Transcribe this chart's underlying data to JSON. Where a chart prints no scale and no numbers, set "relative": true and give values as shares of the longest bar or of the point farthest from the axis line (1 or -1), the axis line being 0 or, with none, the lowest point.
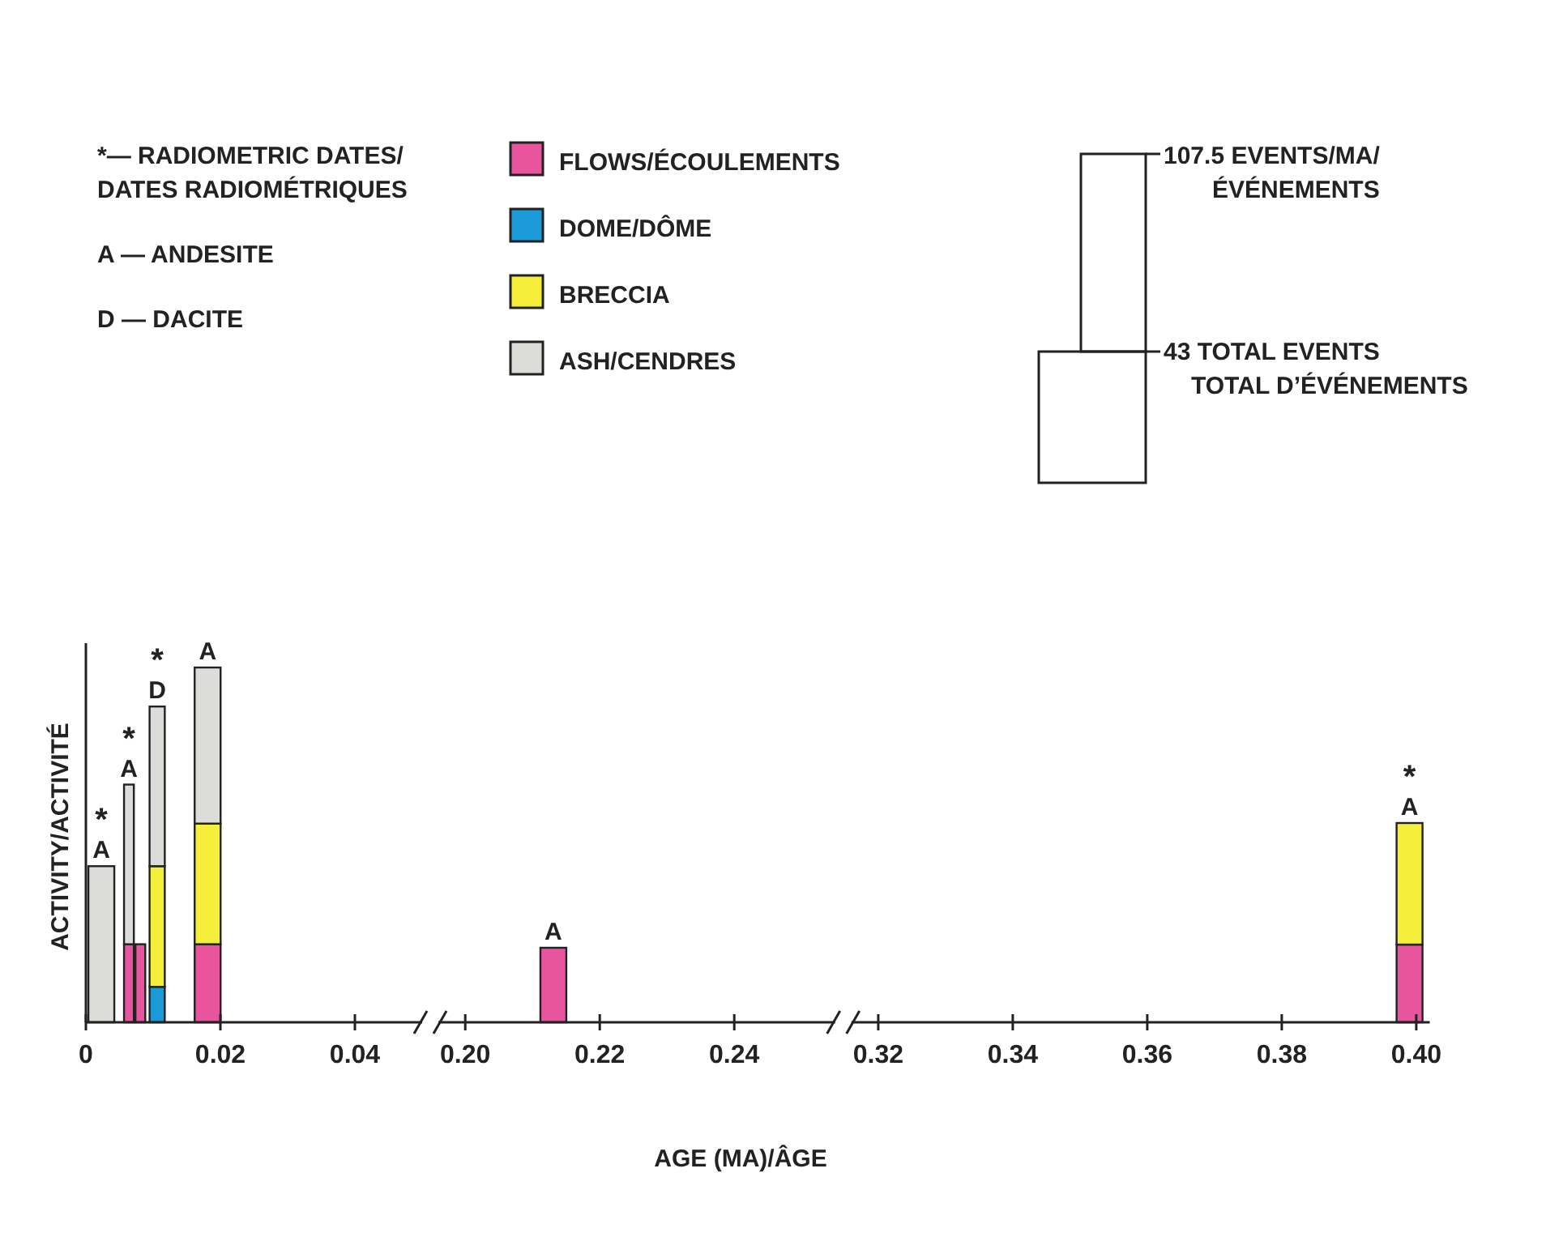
{
  "chart_data": [
    {
      "type": "bar",
      "stacked": true,
      "relative": true,
      "ylabel": "ACTIVITY/ACTIVITÉ",
      "x": [
        0.0023,
        0.0064,
        0.0081,
        0.0106,
        0.0181
      ],
      "xlim": [
        0,
        0.05
      ],
      "xticks": [
        0,
        0.02,
        0.04
      ],
      "series": [
        {
          "name": "FLOWS/ÉCOULEMENTS",
          "color": "#e8559e",
          "values": [
            null,
            0.22,
            0.22,
            null,
            0.22
          ]
        },
        {
          "name": "DOME/DÔME",
          "color": "#1a9ad6",
          "values": [
            null,
            null,
            null,
            0.1,
            null
          ]
        },
        {
          "name": "BRECCIA",
          "color": "#f5ee3a",
          "values": [
            null,
            null,
            null,
            0.34,
            0.34
          ]
        },
        {
          "name": "ASH/CENDRES",
          "color": "#dcdcd8",
          "values": [
            0.44,
            0.45,
            null,
            0.45,
            0.44
          ]
        }
      ],
      "legend": "top",
      "annotations": [
        "*— RADIOMETRIC DATES/\nDATES RADIOMÉTRIQUES",
        "A — ANDESITE",
        "D — DACITE",
        "107.5 EVENTS/MA/\nÉVÉNEMENTS",
        "43 TOTAL EVENTS\nTOTAL D’ÉVÉNEMENTS",
        {
          "text": "*\nA",
          "x": 0.0023,
          "y": 0.44
        },
        {
          "text": "*\nA",
          "x": 0.0064,
          "y": 0.67
        },
        {
          "text": "*\nD",
          "x": 0.0106,
          "y": 0.89
        },
        {
          "text": "A",
          "x": 0.0181,
          "y": 1.0
        }
      ]
    },
    {
      "type": "bar",
      "stacked": true,
      "relative": true,
      "xlabel": "AGE (MA)/ÂGE",
      "x": [
        0.2131
      ],
      "xlim": [
        0.196,
        0.255
      ],
      "xticks": [
        {
          "value": 0.2,
          "label": "0.20"
        },
        0.22,
        0.24
      ],
      "series": [
        {
          "color": "#e8559e",
          "values": [
            1
          ]
        }
      ],
      "annotations": [
        {
          "text": "A",
          "x": 0.2131,
          "y": 1
        }
      ]
    },
    {
      "type": "bar",
      "stacked": true,
      "relative": true,
      "x": [
        0.399
      ],
      "xlim": [
        0.316,
        0.402
      ],
      "xticks": [
        0.32,
        0.34,
        0.36,
        0.38,
        {
          "value": 0.4,
          "label": "0.40"
        }
      ],
      "series": [
        {
          "color": "#e8559e",
          "values": [
            0.39
          ]
        },
        {
          "color": "#f5ee3a",
          "values": [
            0.61
          ]
        }
      ],
      "annotations": [
        {
          "text": "*\nA",
          "x": 0.399,
          "y": 1
        }
      ]
    }
  ]
}
